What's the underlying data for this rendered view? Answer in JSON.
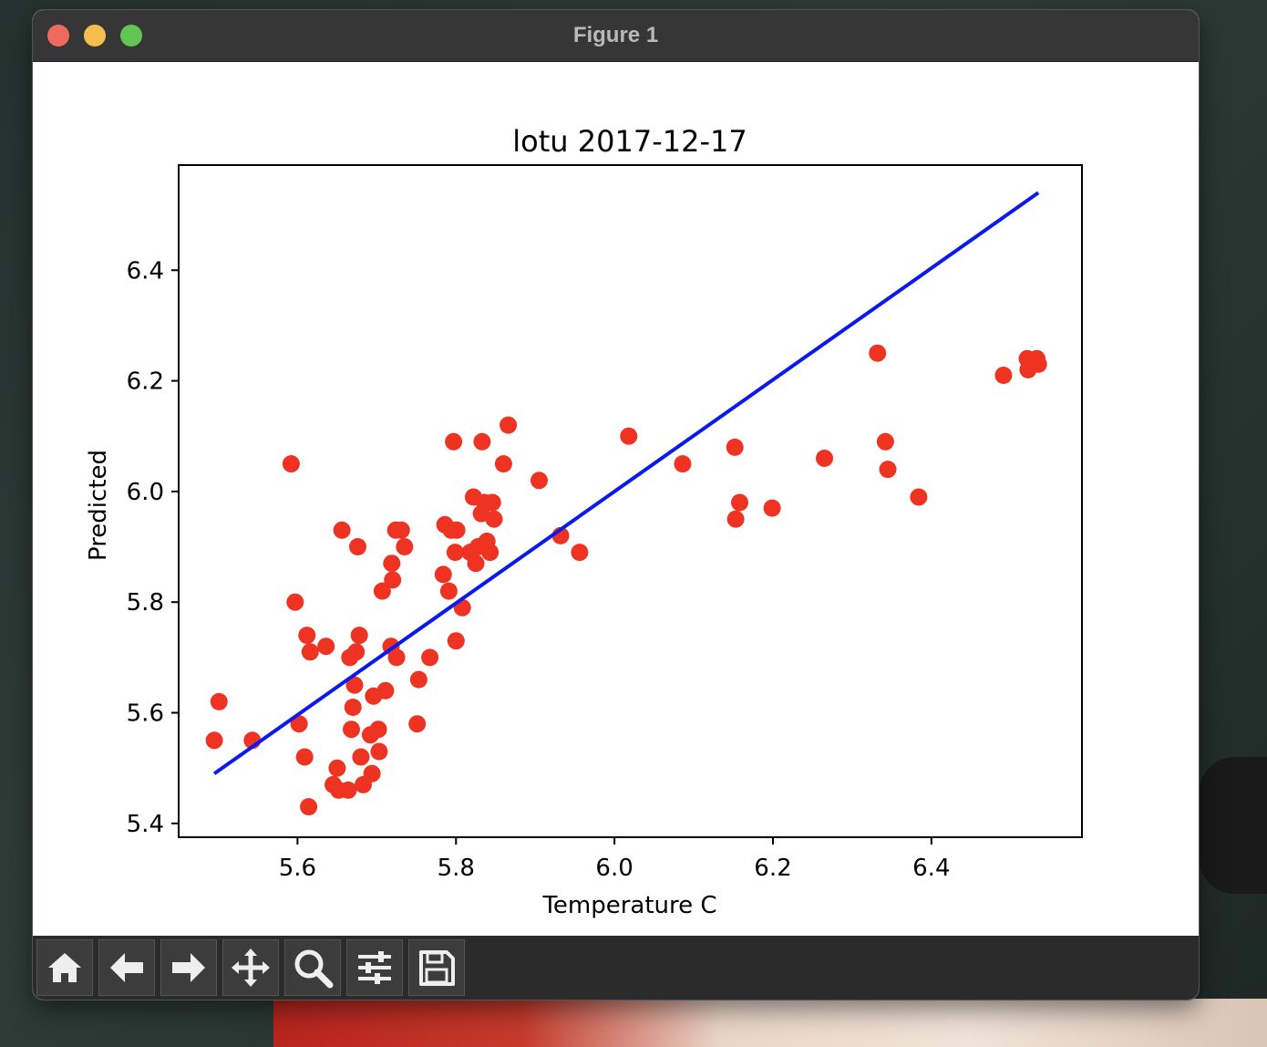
{
  "window": {
    "title": "Figure 1"
  },
  "toolbar": {
    "buttons": [
      {
        "name": "home-button",
        "icon": "home-icon"
      },
      {
        "name": "back-button",
        "icon": "arrow-left-icon"
      },
      {
        "name": "forward-button",
        "icon": "arrow-right-icon"
      },
      {
        "name": "pan-button",
        "icon": "move-icon"
      },
      {
        "name": "zoom-button",
        "icon": "magnifier-icon"
      },
      {
        "name": "configure-subplots-button",
        "icon": "sliders-icon"
      },
      {
        "name": "save-button",
        "icon": "floppy-disk-icon"
      }
    ]
  },
  "chart_data": {
    "type": "scatter",
    "title": "lotu 2017-12-17",
    "xlabel": "Temperature C",
    "ylabel": "Predicted",
    "xlim": [
      5.45,
      6.59
    ],
    "ylim": [
      5.375,
      6.59
    ],
    "xticks": [
      "5.6",
      "5.8",
      "6.0",
      "6.2",
      "6.4"
    ],
    "yticks": [
      "5.4",
      "5.6",
      "5.8",
      "6.0",
      "6.2",
      "6.4"
    ],
    "grid": false,
    "colors": {
      "points": "#ee3322",
      "line": "#0a1aee"
    },
    "fit_line": {
      "x": [
        5.495,
        6.535
      ],
      "y": [
        5.49,
        6.54
      ]
    },
    "points": [
      [
        5.495,
        5.55
      ],
      [
        5.501,
        5.62
      ],
      [
        5.543,
        5.55
      ],
      [
        5.592,
        6.05
      ],
      [
        5.597,
        5.8
      ],
      [
        5.602,
        5.58
      ],
      [
        5.609,
        5.52
      ],
      [
        5.612,
        5.74
      ],
      [
        5.614,
        5.43
      ],
      [
        5.616,
        5.71
      ],
      [
        5.636,
        5.72
      ],
      [
        5.645,
        5.47
      ],
      [
        5.65,
        5.5
      ],
      [
        5.652,
        5.46
      ],
      [
        5.656,
        5.93
      ],
      [
        5.664,
        5.46
      ],
      [
        5.666,
        5.7
      ],
      [
        5.668,
        5.57
      ],
      [
        5.67,
        5.61
      ],
      [
        5.672,
        5.65
      ],
      [
        5.674,
        5.71
      ],
      [
        5.676,
        5.9
      ],
      [
        5.678,
        5.74
      ],
      [
        5.68,
        5.52
      ],
      [
        5.683,
        5.47
      ],
      [
        5.692,
        5.56
      ],
      [
        5.694,
        5.49
      ],
      [
        5.696,
        5.63
      ],
      [
        5.702,
        5.57
      ],
      [
        5.703,
        5.53
      ],
      [
        5.707,
        5.82
      ],
      [
        5.711,
        5.64
      ],
      [
        5.718,
        5.72
      ],
      [
        5.719,
        5.87
      ],
      [
        5.72,
        5.84
      ],
      [
        5.724,
        5.93
      ],
      [
        5.725,
        5.7
      ],
      [
        5.731,
        5.93
      ],
      [
        5.735,
        5.9
      ],
      [
        5.751,
        5.58
      ],
      [
        5.753,
        5.66
      ],
      [
        5.767,
        5.7
      ],
      [
        5.784,
        5.85
      ],
      [
        5.786,
        5.94
      ],
      [
        5.791,
        5.82
      ],
      [
        5.794,
        5.93
      ],
      [
        5.797,
        6.09
      ],
      [
        5.799,
        5.89
      ],
      [
        5.8,
        5.73
      ],
      [
        5.801,
        5.93
      ],
      [
        5.808,
        5.79
      ],
      [
        5.818,
        5.89
      ],
      [
        5.822,
        5.99
      ],
      [
        5.825,
        5.87
      ],
      [
        5.828,
        5.9
      ],
      [
        5.832,
        5.96
      ],
      [
        5.833,
        6.09
      ],
      [
        5.836,
        5.98
      ],
      [
        5.839,
        5.91
      ],
      [
        5.843,
        5.89
      ],
      [
        5.846,
        5.98
      ],
      [
        5.848,
        5.95
      ],
      [
        5.86,
        6.05
      ],
      [
        5.866,
        6.12
      ],
      [
        5.905,
        6.02
      ],
      [
        5.932,
        5.92
      ],
      [
        5.956,
        5.89
      ],
      [
        6.018,
        6.1
      ],
      [
        6.086,
        6.05
      ],
      [
        6.152,
        6.08
      ],
      [
        6.153,
        5.95
      ],
      [
        6.158,
        5.98
      ],
      [
        6.199,
        5.97
      ],
      [
        6.265,
        6.06
      ],
      [
        6.332,
        6.25
      ],
      [
        6.342,
        6.09
      ],
      [
        6.345,
        6.04
      ],
      [
        6.384,
        5.99
      ],
      [
        6.491,
        6.21
      ],
      [
        6.521,
        6.24
      ],
      [
        6.522,
        6.22
      ],
      [
        6.533,
        6.24
      ],
      [
        6.535,
        6.23
      ]
    ]
  }
}
